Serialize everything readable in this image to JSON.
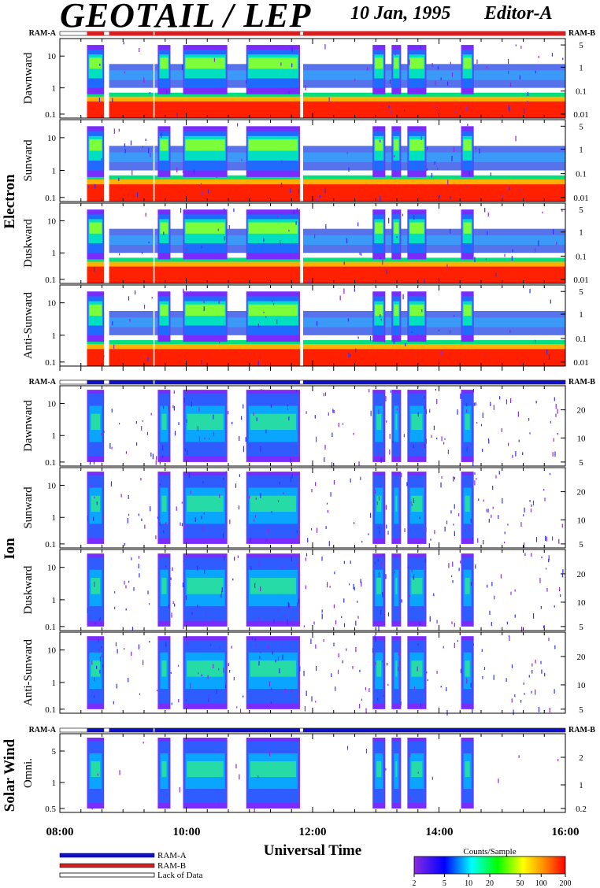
{
  "header": {
    "title": "GEOTAIL / LEP",
    "date": "10 Jan, 1995",
    "editor": "Editor-A"
  },
  "ram_labels": {
    "a": "RAM-A",
    "b": "RAM-B"
  },
  "groups": [
    {
      "name": "Electron",
      "panels": [
        "Dawnward",
        "Sunward",
        "Duskward",
        "Anti-Sunward"
      ]
    },
    {
      "name": "Ion",
      "panels": [
        "Dawnward",
        "Sunward",
        "Duskward",
        "Anti-Sunward"
      ]
    },
    {
      "name": "Solar Wind",
      "panels": [
        "Omni."
      ]
    }
  ],
  "chart_data": {
    "type": "heatmap",
    "x_axis": {
      "label": "Universal Time",
      "ticks": [
        "08:00",
        "10:00",
        "12:00",
        "14:00",
        "16:00"
      ],
      "range_hours": [
        8,
        16
      ]
    },
    "electron": {
      "left_ticks": [
        "10",
        "1",
        "0.1"
      ],
      "right_ticks": [
        "5",
        "1",
        "0.1",
        "0.01"
      ],
      "scale": "log"
    },
    "ion": {
      "left_ticks": [
        "10",
        "1",
        "0.1"
      ],
      "right_ticks": [
        "20",
        "10",
        "5"
      ],
      "scale": "log"
    },
    "solar_wind": {
      "left_ticks": [
        "5",
        "1",
        "0.5"
      ],
      "right_ticks": [
        "2",
        "1",
        "0.2"
      ],
      "scale": "log"
    },
    "colorbar": {
      "title": "Counts/Sample",
      "ticks": [
        "2",
        "5",
        "10",
        "20",
        "50",
        "100",
        "200"
      ],
      "colors": [
        "#8a2be2",
        "#0000ff",
        "#00ffff",
        "#00ff00",
        "#ffff00",
        "#ff8c00",
        "#ff0000"
      ]
    },
    "data_segments_hours": [
      [
        8.43,
        8.7
      ],
      [
        8.78,
        9.48
      ],
      [
        9.5,
        11.8
      ],
      [
        11.85,
        16.0
      ]
    ],
    "active_intervals_hours": [
      [
        8.43,
        8.7
      ],
      [
        9.55,
        9.75
      ],
      [
        9.95,
        10.65
      ],
      [
        10.95,
        11.8
      ],
      [
        12.95,
        13.15
      ],
      [
        13.25,
        13.4
      ],
      [
        13.5,
        13.8
      ],
      [
        14.35,
        14.55
      ]
    ]
  },
  "legend": {
    "items": [
      {
        "label": "RAM-A",
        "color": "#1010c8"
      },
      {
        "label": "RAM-B",
        "color": "#d42020"
      },
      {
        "label": "Lack of Data",
        "color": "#ffffff"
      }
    ]
  },
  "colors": {
    "ram_a": "#1010c8",
    "ram_b": "#d42020"
  }
}
